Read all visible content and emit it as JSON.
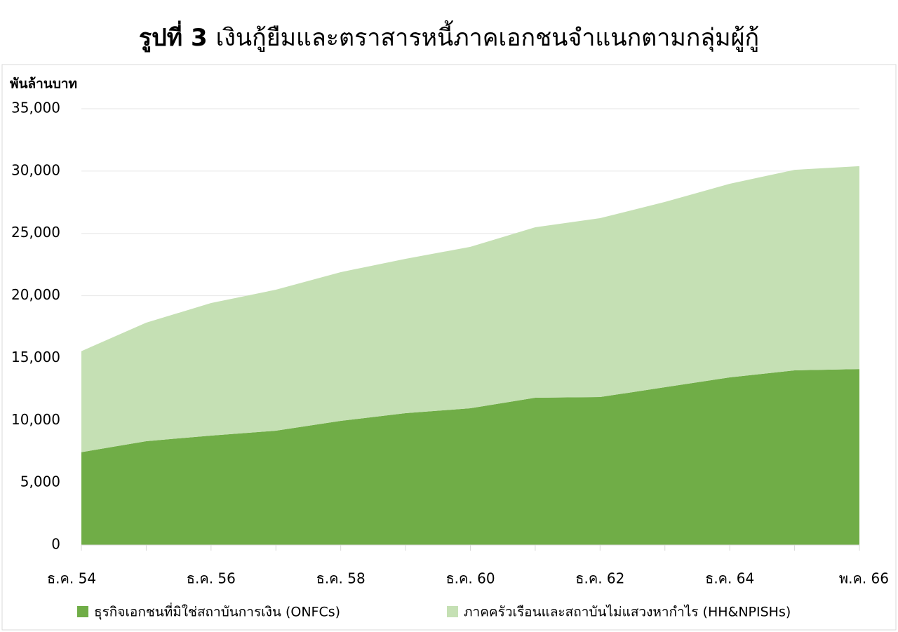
{
  "chart_data": {
    "type": "stacked_area",
    "title_label": "รูปที่ 3",
    "title": "เงินกู้ยืมและตราสารหนี้ภาคเอกชนจำแนกตามกลุ่มผู้กู้",
    "y_label": "พันล้านบาท",
    "categories": [
      "ธ.ค. 54",
      null,
      "ธ.ค. 56",
      null,
      "ธ.ค. 58",
      null,
      "ธ.ค. 60",
      null,
      "ธ.ค. 62",
      null,
      "ธ.ค. 64",
      null,
      "พ.ค. 66"
    ],
    "series": [
      {
        "name": "ธุรกิจเอกชนที่มิใช่สถาบันการเงิน (ONFCs)",
        "color": "#70ad47",
        "values": [
          7450,
          8330,
          8780,
          9170,
          9960,
          10580,
          10970,
          11820,
          11870,
          12660,
          13450,
          14010,
          14120
        ]
      },
      {
        "name": "ภาคครัวเรือนและสถาบันไม่แสวงหากำไร (HH&NPISHs)",
        "color": "#c5e0b4",
        "values": [
          8100,
          9510,
          10630,
          11310,
          11930,
          12380,
          12950,
          13670,
          14350,
          14860,
          15530,
          16090,
          16270
        ]
      }
    ],
    "ylim": [
      0,
      35000
    ],
    "yticks": [
      0,
      {
        "value": 5000,
        "label": "5,000"
      },
      {
        "value": 10000,
        "label": "10,000"
      },
      {
        "value": 15000,
        "label": "15,000"
      },
      {
        "value": 20000,
        "label": "20,000"
      },
      {
        "value": 25000,
        "label": "25,000"
      },
      {
        "value": 30000,
        "label": "30,000"
      },
      {
        "value": 35000,
        "label": "35,000"
      }
    ],
    "grid": true,
    "legend": "bottom"
  }
}
